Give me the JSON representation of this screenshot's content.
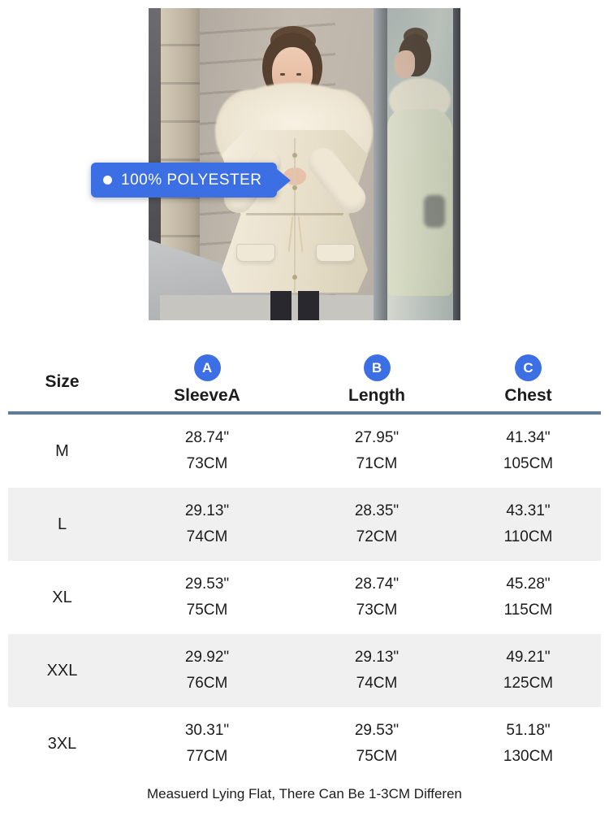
{
  "product_label": {
    "text": "100% POLYESTER"
  },
  "size_chart": {
    "size_header": "Size",
    "columns": [
      {
        "badge": "A",
        "label": "SleeveA"
      },
      {
        "badge": "B",
        "label": "Length"
      },
      {
        "badge": "C",
        "label": "Chest"
      }
    ],
    "rows": [
      {
        "size": "M",
        "sleeve_in": "28.74\"",
        "sleeve_cm": "73CM",
        "length_in": "27.95\"",
        "length_cm": "71CM",
        "chest_in": "41.34\"",
        "chest_cm": "105CM"
      },
      {
        "size": "L",
        "sleeve_in": "29.13\"",
        "sleeve_cm": "74CM",
        "length_in": "28.35\"",
        "length_cm": "72CM",
        "chest_in": "43.31\"",
        "chest_cm": "110CM"
      },
      {
        "size": "XL",
        "sleeve_in": "29.53\"",
        "sleeve_cm": "75CM",
        "length_in": "28.74\"",
        "length_cm": "73CM",
        "chest_in": "45.28\"",
        "chest_cm": "115CM"
      },
      {
        "size": "XXL",
        "sleeve_in": "29.92\"",
        "sleeve_cm": "76CM",
        "length_in": "29.13\"",
        "length_cm": "74CM",
        "chest_in": "49.21\"",
        "chest_cm": "125CM"
      },
      {
        "size": "3XL",
        "sleeve_in": "30.31\"",
        "sleeve_cm": "77CM",
        "length_in": "29.53\"",
        "length_cm": "75CM",
        "chest_in": "51.18\"",
        "chest_cm": "130CM"
      }
    ],
    "footer_note": "Measuerd Lying Flat, There Can Be 1-3CM Differen"
  },
  "colors": {
    "accent_blue": "#3c6ee4",
    "divider_blue": "#5f7d98",
    "row_stripe": "#f0f0f0",
    "text_dark": "#1c1c1c"
  }
}
